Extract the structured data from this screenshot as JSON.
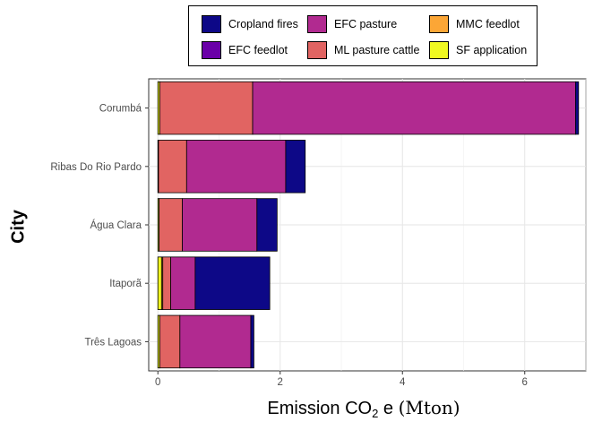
{
  "chart_data": {
    "type": "bar",
    "orientation": "horizontal",
    "stacked": true,
    "xlabel": "Emission CO",
    "xlabel_sub": "2",
    "xlabel_rest": " e ",
    "xlabel_unit": "(Mton)",
    "ylabel": "City",
    "xlim": [
      -0.15,
      7.0
    ],
    "xticks": [
      0,
      2,
      4,
      6
    ],
    "grid": true,
    "legend_position": "top",
    "categories": [
      "Corumbá",
      "Ribas Do Rio Pardo",
      "Água Clara",
      "Itaporã",
      "Três Lagoas"
    ],
    "series": [
      {
        "name": "Cropland fires",
        "color": "#0d0887",
        "values": [
          0.05,
          0.32,
          0.33,
          1.22,
          0.05
        ]
      },
      {
        "name": "EFC feedlot",
        "color": "#6a00a8",
        "values": [
          0.0,
          0.0,
          0.0,
          0.0,
          0.0
        ]
      },
      {
        "name": "EFC pasture",
        "color": "#b12a90",
        "values": [
          5.28,
          1.62,
          1.22,
          0.4,
          1.16
        ]
      },
      {
        "name": "ML pasture cattle",
        "color": "#e16462",
        "values": [
          1.52,
          0.46,
          0.38,
          0.13,
          0.33
        ]
      },
      {
        "name": "MMC feedlot",
        "color": "#fca636",
        "values": [
          0.0,
          0.0,
          0.0,
          0.02,
          0.0
        ]
      },
      {
        "name": "SF application",
        "color": "#f0f921",
        "values": [
          0.03,
          0.01,
          0.02,
          0.06,
          0.03
        ]
      }
    ]
  }
}
